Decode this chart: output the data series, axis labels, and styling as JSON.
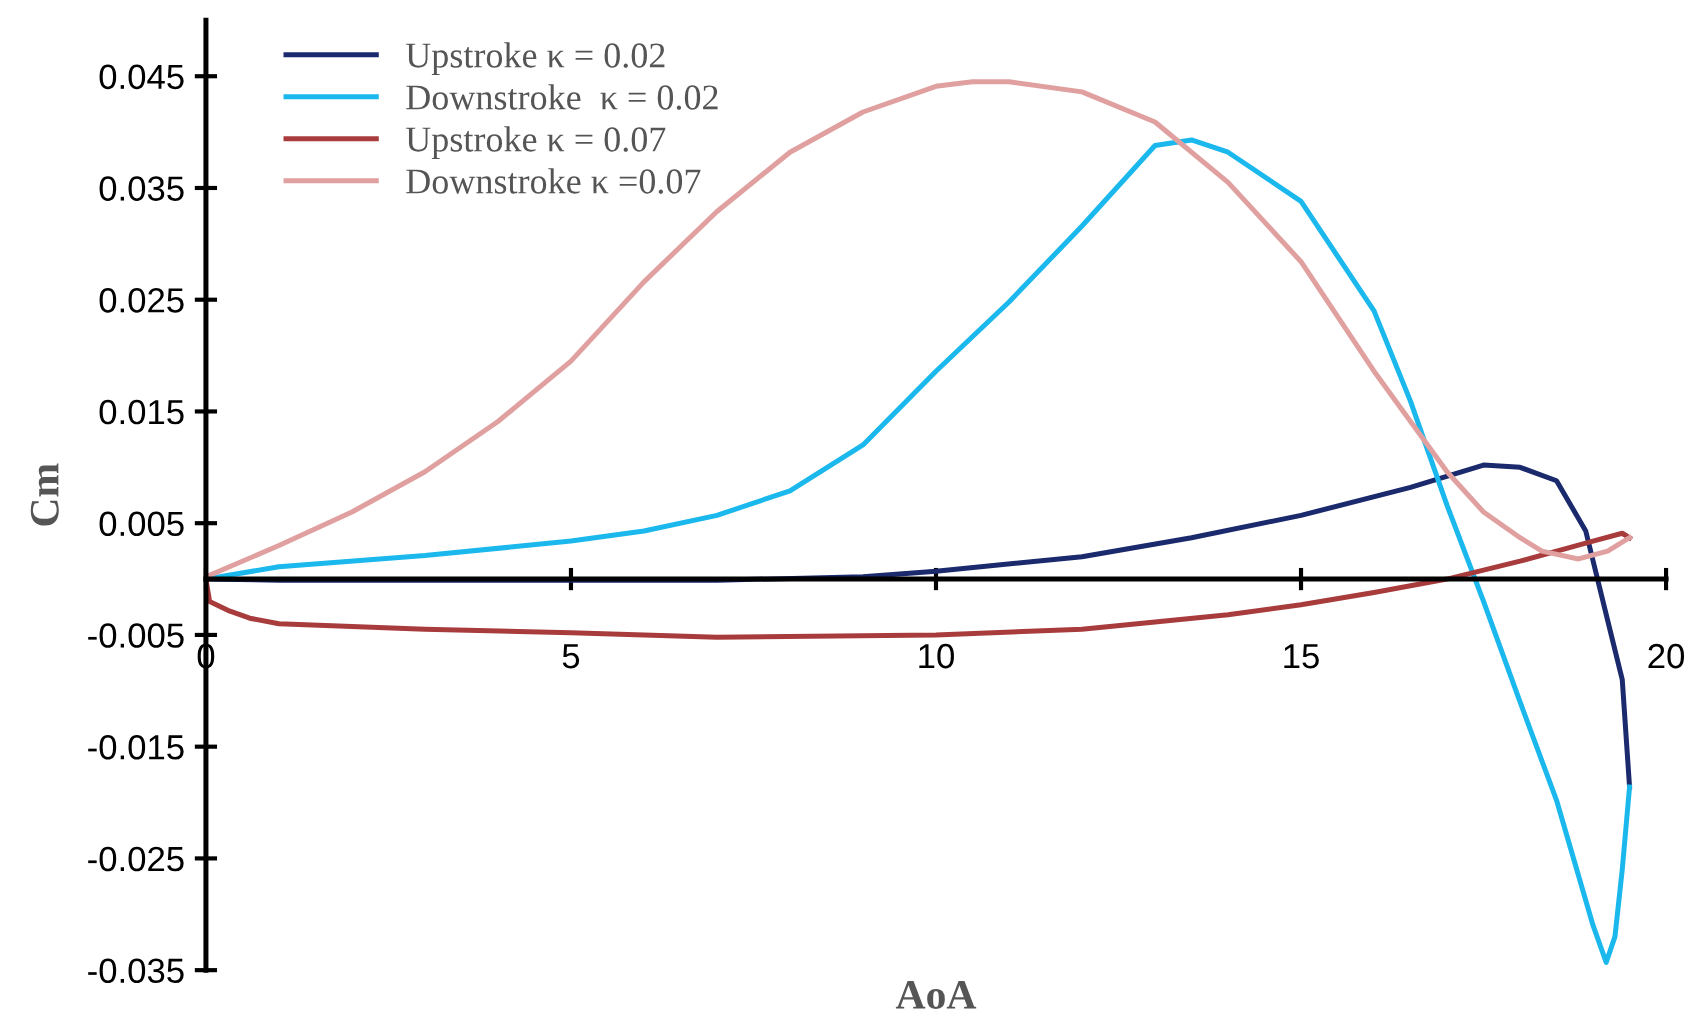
{
  "chart_data": {
    "type": "line",
    "xlabel": "AoA",
    "ylabel": "Cm",
    "xlim": [
      0,
      20
    ],
    "ylim": [
      -0.035,
      0.05
    ],
    "xticks": [
      0,
      5,
      10,
      15,
      20
    ],
    "yticks": [
      -0.035,
      -0.025,
      -0.015,
      -0.005,
      0.005,
      0.015,
      0.025,
      0.035,
      0.045
    ],
    "grid": false,
    "legend": "top left",
    "marker": "none",
    "line_style": "solid",
    "series": [
      {
        "name": "Upstroke κ = 0.02",
        "color": "#1a2a6c",
        "x": [
          0,
          1,
          3,
          5,
          7,
          9,
          10,
          12,
          13.5,
          15,
          16.5,
          17.5,
          18,
          18.5,
          18.9,
          19.2,
          19.4,
          19.5
        ],
        "values": [
          0,
          -0.0001,
          -0.0001,
          -0.0001,
          -0.0001,
          0.0002,
          0.0007,
          0.002,
          0.0037,
          0.0057,
          0.0082,
          0.0102,
          0.01,
          0.0088,
          0.0043,
          -0.0037,
          -0.009,
          -0.0186
        ]
      },
      {
        "name": "Downstroke  κ = 0.02",
        "color": "#1ab8ec",
        "x": [
          19.5,
          19.4,
          19.3,
          19.18,
          19.0,
          18.5,
          18,
          17.5,
          17,
          16.5,
          16,
          15,
          14,
          13.5,
          13,
          12,
          11,
          10,
          9,
          8,
          7,
          6,
          5,
          3,
          1,
          0
        ],
        "values": [
          -0.0186,
          -0.026,
          -0.032,
          -0.0343,
          -0.031,
          -0.0198,
          -0.011,
          -0.002,
          0.0066,
          0.0159,
          0.024,
          0.0338,
          0.0382,
          0.0393,
          0.0388,
          0.0316,
          0.0248,
          0.0186,
          0.012,
          0.0079,
          0.0057,
          0.0043,
          0.0034,
          0.0021,
          0.0011,
          0
        ]
      },
      {
        "name": "Upstroke κ = 0.07",
        "color": "#a83c3c",
        "x": [
          0,
          0.05,
          0.3,
          0.6,
          1,
          3,
          5,
          7,
          10,
          12,
          14,
          15,
          16,
          17,
          18,
          19,
          19.4,
          19.5
        ],
        "values": [
          0,
          -0.002,
          -0.0028,
          -0.0035,
          -0.004,
          -0.0045,
          -0.0048,
          -0.0052,
          -0.005,
          -0.0045,
          -0.0032,
          -0.0023,
          -0.0012,
          0,
          0.0016,
          0.0034,
          0.0041,
          0.0037
        ]
      },
      {
        "name": "Downstroke κ =0.07",
        "color": "#e0a0a0",
        "x": [
          19.5,
          19.2,
          18.8,
          18.3,
          18,
          17.5,
          17,
          16.5,
          16,
          15,
          14,
          13,
          12,
          11,
          10.5,
          10,
          9,
          8,
          7,
          6,
          5,
          4,
          3,
          2,
          1,
          0
        ],
        "values": [
          0.0037,
          0.0025,
          0.0018,
          0.0025,
          0.0037,
          0.006,
          0.0096,
          0.0141,
          0.0186,
          0.0284,
          0.0355,
          0.0409,
          0.0436,
          0.0445,
          0.0445,
          0.0441,
          0.0418,
          0.0382,
          0.0329,
          0.0266,
          0.0195,
          0.0141,
          0.0096,
          0.006,
          0.003,
          0.0002
        ]
      }
    ]
  }
}
